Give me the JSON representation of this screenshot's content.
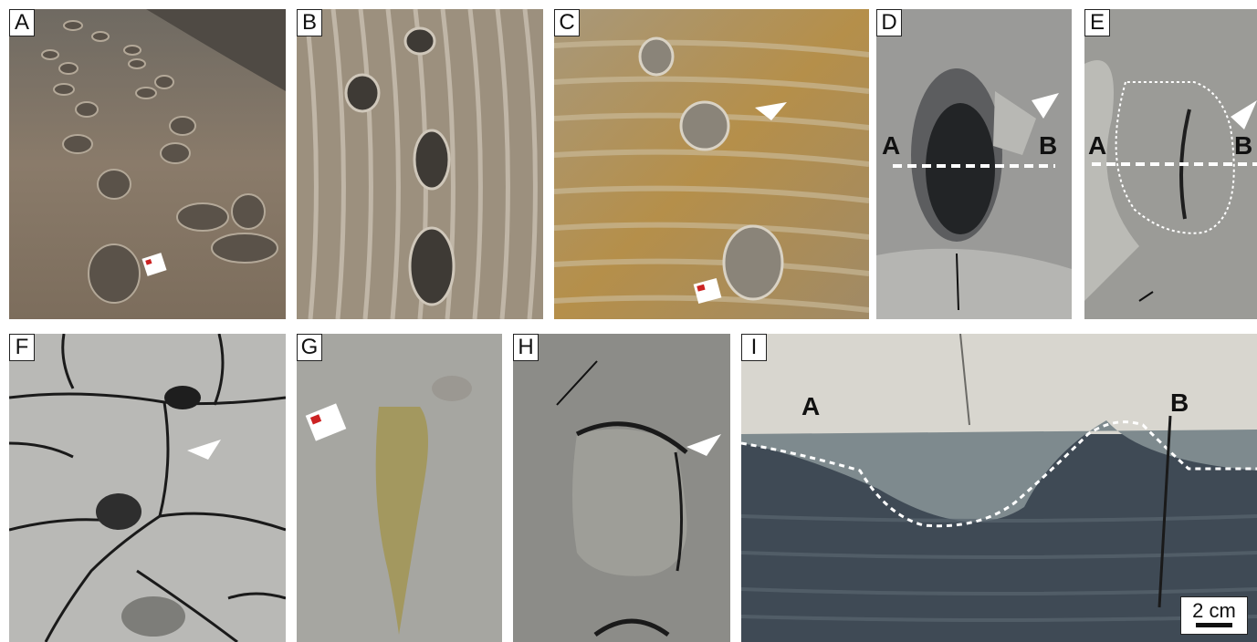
{
  "panels": [
    {
      "id": "A",
      "label": "A"
    },
    {
      "id": "B",
      "label": "B"
    },
    {
      "id": "C",
      "label": "C"
    },
    {
      "id": "D",
      "label": "D",
      "section_start": "A",
      "section_end": "B"
    },
    {
      "id": "E",
      "label": "E",
      "section_start": "A",
      "section_end": "B"
    },
    {
      "id": "F",
      "label": "F"
    },
    {
      "id": "G",
      "label": "G"
    },
    {
      "id": "H",
      "label": "H"
    },
    {
      "id": "I",
      "label": "I",
      "section_start": "A",
      "section_end": "B",
      "scale_label": "2 cm"
    }
  ],
  "colors": {
    "mudflat_brown": "#8a7a68",
    "rippled_tan": "#a09483",
    "sandy_yellow": "#b89a5a",
    "grey_mud": "#9a9a98",
    "dark_section": "#3f4a55",
    "light_crust": "#d8d6cf"
  }
}
